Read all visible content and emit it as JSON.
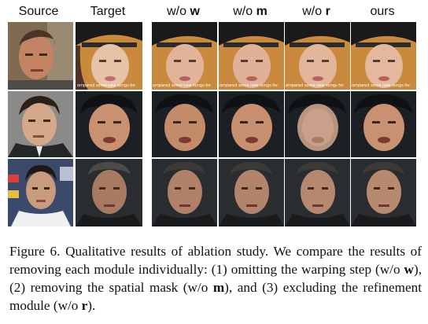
{
  "columns": {
    "source": "Source",
    "target": "Target",
    "wo_w_prefix": "w/o",
    "wo_w_bold": "w",
    "wo_m_prefix": "w/o",
    "wo_m_bold": "m",
    "wo_r_prefix": "w/o",
    "wo_r_bold": "r",
    "ours": "ours"
  },
  "target_overlay_text": "ompared some new songs for",
  "caption": {
    "p1": "Figure 6.  Qualitative results of ablation study.  We compare the results of removing each module individually: (1) omitting the warping step (w/o ",
    "b1": "w",
    "p2": "), (2) removing the spatial mask (w/o ",
    "b2": "m",
    "p3": "), and (3) excluding the refinement module (w/o ",
    "b3": "r",
    "p4": ")."
  },
  "colors": {
    "row1_bg": "#c98a3e",
    "row2_bg": "#1c1f24",
    "row3_bg": "#2a2d30",
    "skin_light": "#e7c2a6",
    "skin_mid": "#c9916f",
    "skin_dark": "#a87a62",
    "cap_black": "#1a1a1a"
  }
}
